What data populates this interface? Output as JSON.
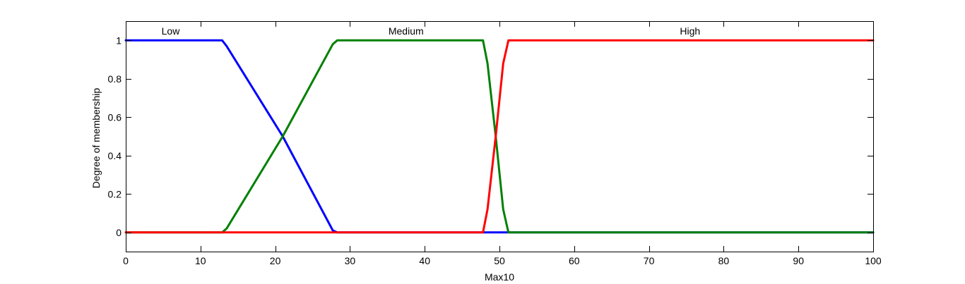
{
  "chart_data": {
    "type": "line",
    "title": "",
    "xlabel": "Max10",
    "ylabel": "Degree of membership",
    "xlim": [
      0,
      100
    ],
    "ylim": [
      -0.1,
      1.1
    ],
    "xticks": [
      0,
      10,
      20,
      30,
      40,
      50,
      60,
      70,
      80,
      90,
      100
    ],
    "yticks": [
      0,
      0.2,
      0.4,
      0.6,
      0.8,
      1
    ],
    "grid": false,
    "legend": "none",
    "series": [
      {
        "name": "Low",
        "color": "#0000ff",
        "x": [
          0,
          12.9,
          13.5,
          21,
          27.7,
          28.3,
          51.2,
          100
        ],
        "y": [
          1,
          1,
          0.97,
          0.5,
          0.01,
          0,
          0,
          0
        ],
        "label_x": 6
      },
      {
        "name": "Medium",
        "color": "#008000",
        "x": [
          0,
          12.9,
          13.5,
          21,
          27.7,
          28.3,
          47.8,
          48.4,
          49.5,
          50.5,
          51.2,
          100
        ],
        "y": [
          0,
          0,
          0.02,
          0.5,
          0.98,
          1,
          1,
          0.88,
          0.5,
          0.12,
          0,
          0
        ],
        "label_x": 37.5
      },
      {
        "name": "High",
        "color": "#ff0000",
        "x": [
          0,
          47.8,
          48.4,
          49.5,
          50.5,
          51.2,
          100
        ],
        "y": [
          0,
          0,
          0.12,
          0.5,
          0.88,
          1,
          1
        ],
        "label_x": 75.5
      }
    ]
  }
}
